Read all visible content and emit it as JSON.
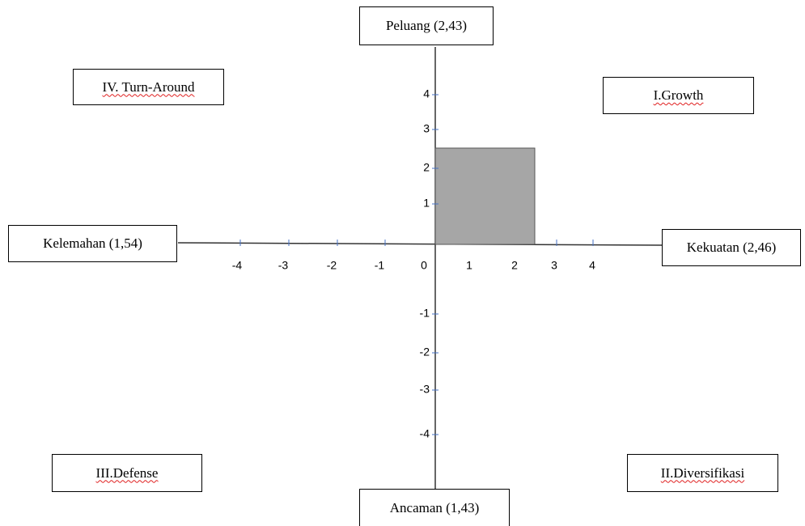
{
  "axes": {
    "top": "Peluang (2,43)",
    "bottom": "Ancaman (1,43)",
    "left": "Kelemahan (1,54)",
    "right": "Kekuatan (2,46)"
  },
  "quadrants": {
    "top_left": "IV. Turn-Around",
    "top_right": "I.Growth",
    "bottom_left": "III.Defense",
    "bottom_right": "II.Diversifikasi"
  },
  "x_tick_labels": [
    "-4",
    "-3",
    "-2",
    "-1",
    "0",
    "1",
    "2",
    "3",
    "4"
  ],
  "y_tick_labels": [
    "4",
    "3",
    "2",
    "1",
    "-1",
    "-2",
    "-3",
    "-4"
  ]
}
